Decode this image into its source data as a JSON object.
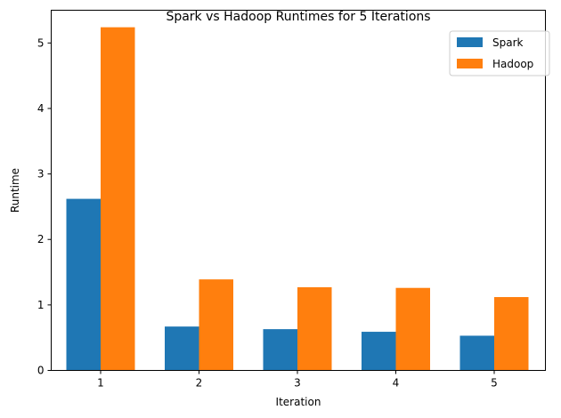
{
  "chart_data": {
    "type": "bar",
    "title": "Spark vs Hadoop Runtimes for 5 Iterations",
    "xlabel": "Iteration",
    "ylabel": "Runtime",
    "categories": [
      "1",
      "2",
      "3",
      "4",
      "5"
    ],
    "series": [
      {
        "name": "Spark",
        "color": "#1f77b4",
        "values": [
          2.62,
          0.67,
          0.63,
          0.59,
          0.53
        ]
      },
      {
        "name": "Hadoop",
        "color": "#ff7f0e",
        "values": [
          5.24,
          1.39,
          1.27,
          1.26,
          1.12
        ]
      }
    ],
    "ylim": [
      0,
      5.5
    ],
    "yticks": [
      "0",
      "1",
      "2",
      "3",
      "4",
      "5"
    ],
    "grid": false,
    "legend_position": "top-right"
  }
}
